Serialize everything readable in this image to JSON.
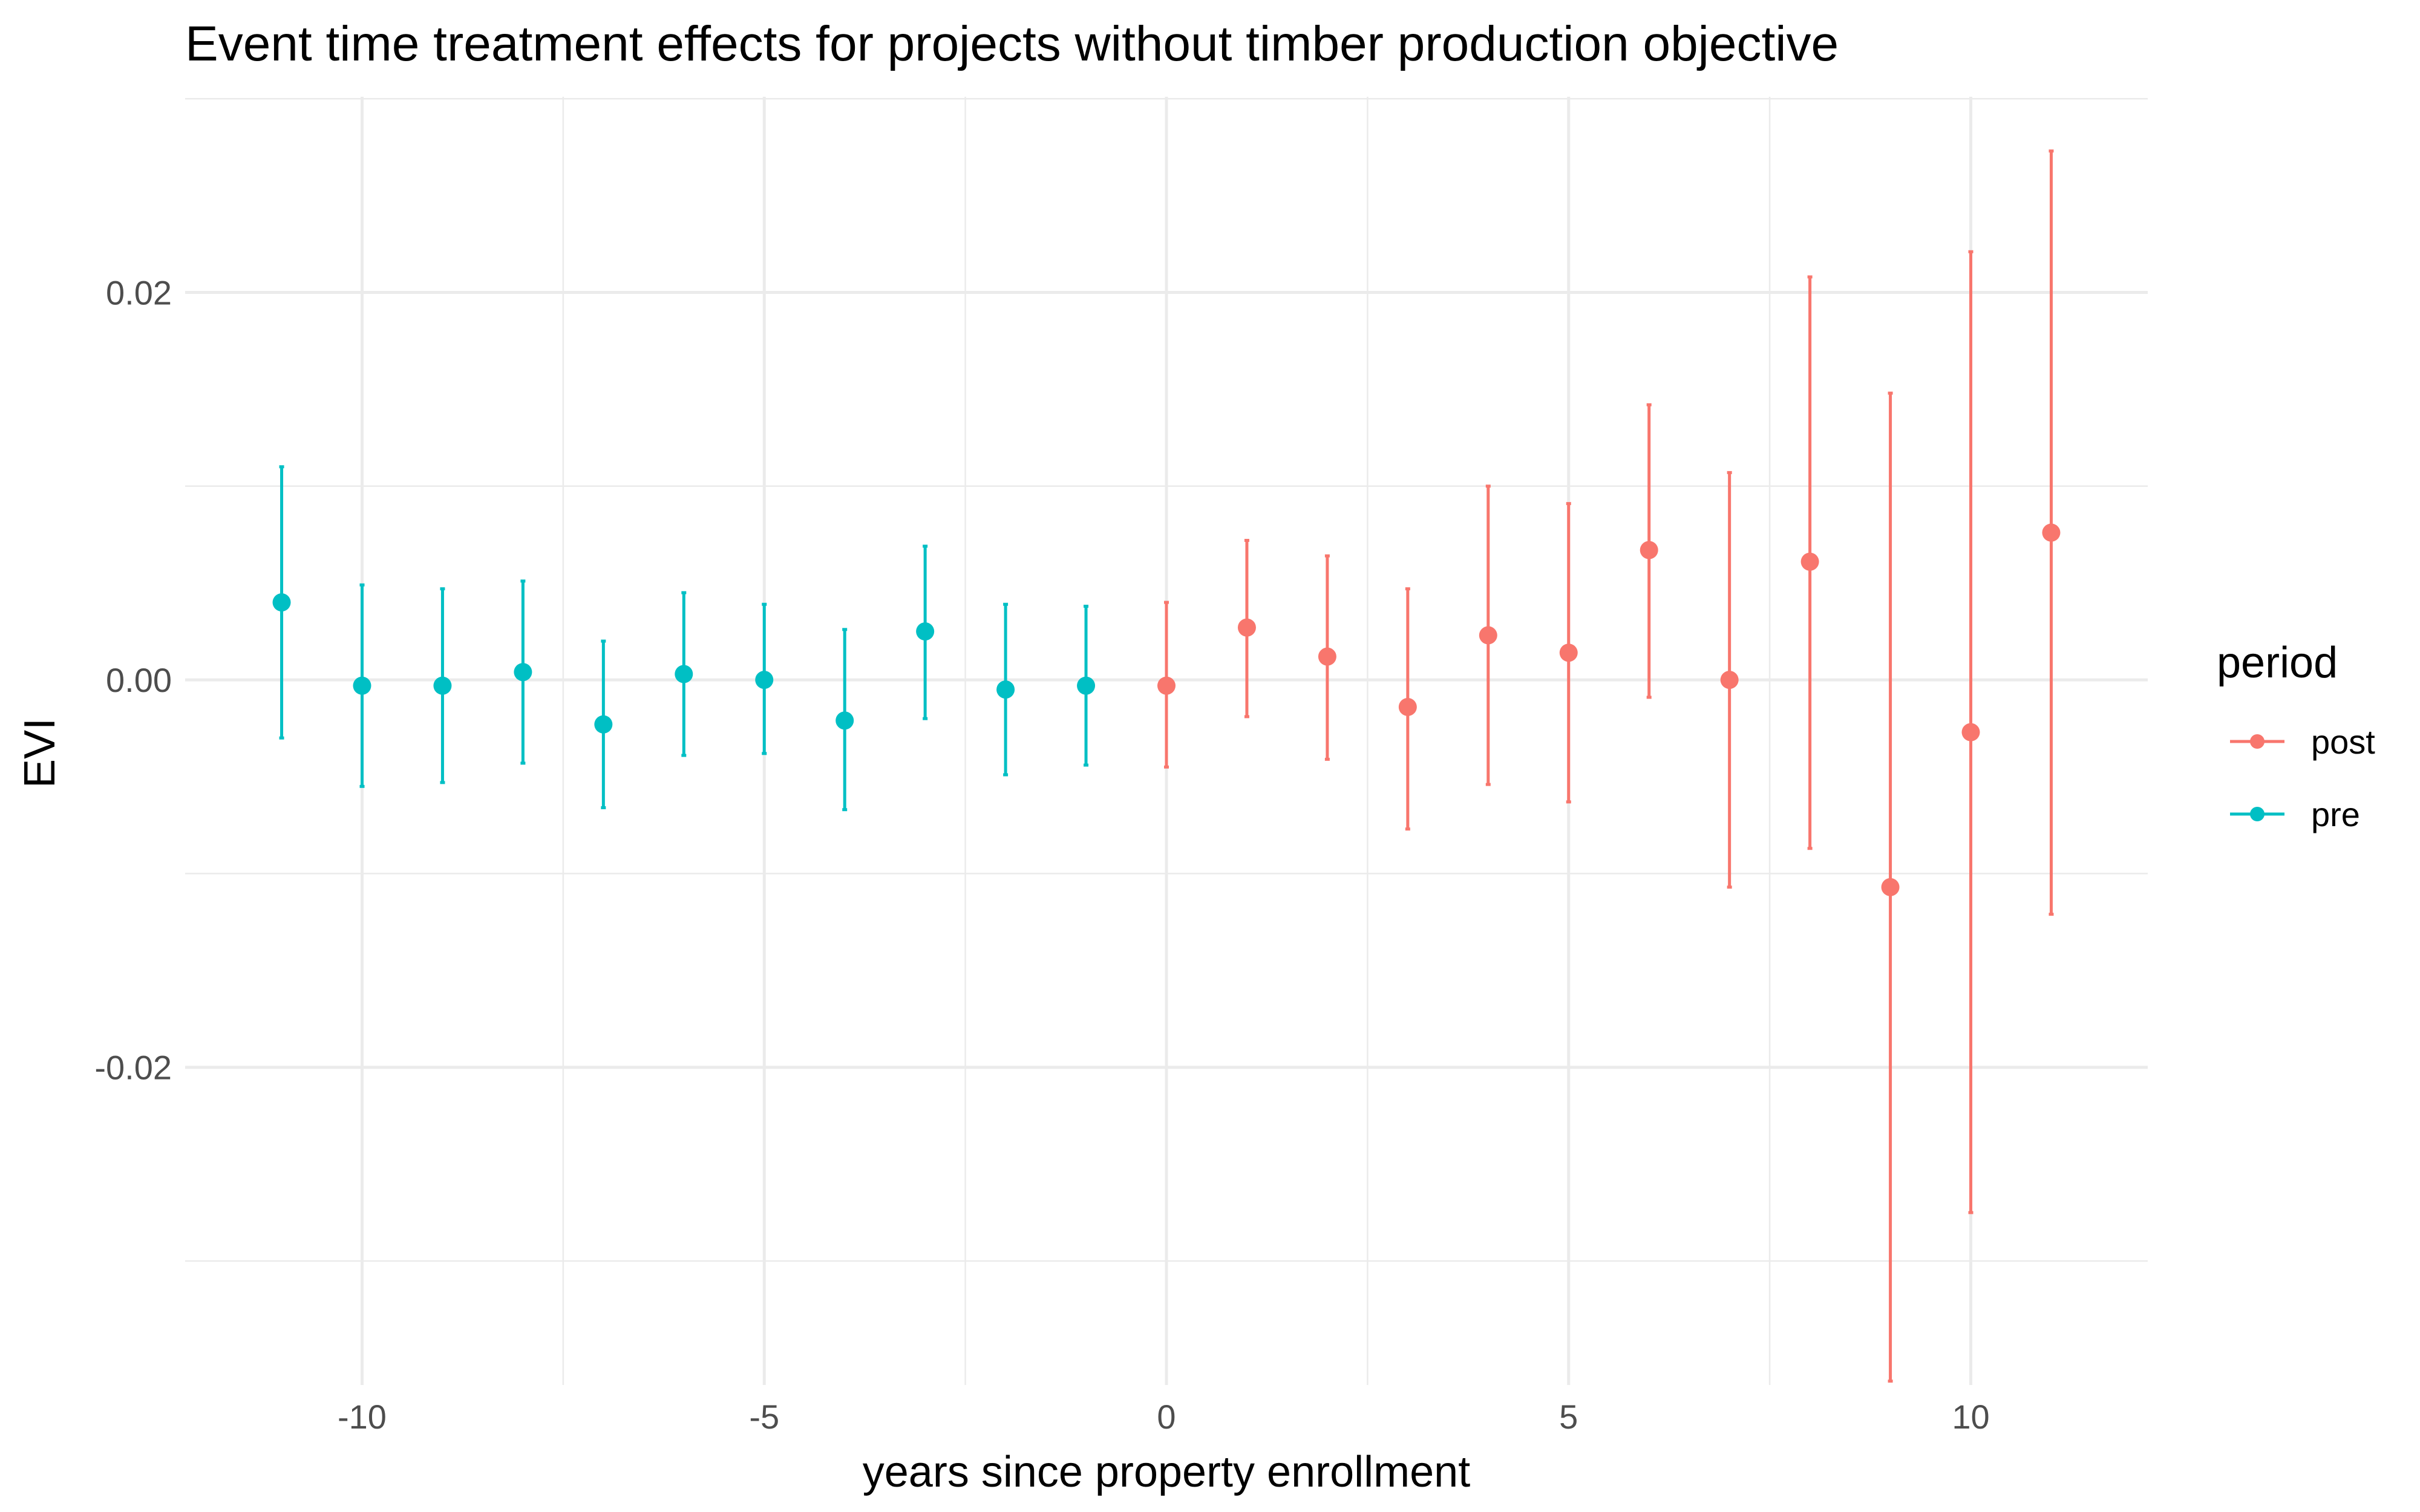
{
  "chart_data": {
    "type": "scatter",
    "title": "Event time treatment effects for projects without timber production objective",
    "xlabel": "years since property enrollment",
    "ylabel": "EVI",
    "xlim": [
      -12.2,
      12.2
    ],
    "ylim": [
      -0.0364,
      0.0301
    ],
    "x_ticks": [
      -10,
      -5,
      0,
      5,
      10
    ],
    "x_tick_labels": [
      "-10",
      "-5",
      "0",
      "5",
      "10"
    ],
    "y_ticks": [
      0.02,
      0.0,
      -0.02
    ],
    "y_tick_labels": [
      "0.02",
      "0.00",
      "-0.02"
    ],
    "grid": true,
    "legend": {
      "title": "period",
      "position": "right",
      "entries": [
        {
          "label": "post",
          "color": "#F8766D"
        },
        {
          "label": "pre",
          "color": "#00BFC4"
        }
      ]
    },
    "series": [
      {
        "name": "pre",
        "color": "#00BFC4",
        "points": [
          {
            "x": -11,
            "y": 0.004,
            "ymin": -0.003,
            "ymax": 0.011
          },
          {
            "x": -10,
            "y": -0.0003,
            "ymin": -0.0055,
            "ymax": 0.0049
          },
          {
            "x": -9,
            "y": -0.0003,
            "ymin": -0.0053,
            "ymax": 0.0047
          },
          {
            "x": -8,
            "y": 0.0004,
            "ymin": -0.0043,
            "ymax": 0.0051
          },
          {
            "x": -7,
            "y": -0.0023,
            "ymin": -0.0066,
            "ymax": 0.002
          },
          {
            "x": -6,
            "y": 0.0003,
            "ymin": -0.0039,
            "ymax": 0.0045
          },
          {
            "x": -5,
            "y": 0.0,
            "ymin": -0.0038,
            "ymax": 0.0039
          },
          {
            "x": -4,
            "y": -0.0021,
            "ymin": -0.0067,
            "ymax": 0.0026
          },
          {
            "x": -3,
            "y": 0.0025,
            "ymin": -0.002,
            "ymax": 0.0069
          },
          {
            "x": -2,
            "y": -0.0005,
            "ymin": -0.0049,
            "ymax": 0.0039
          },
          {
            "x": -1,
            "y": -0.0003,
            "ymin": -0.0044,
            "ymax": 0.0038
          }
        ]
      },
      {
        "name": "post",
        "color": "#F8766D",
        "points": [
          {
            "x": 0,
            "y": -0.0003,
            "ymin": -0.0045,
            "ymax": 0.004
          },
          {
            "x": 1,
            "y": 0.0027,
            "ymin": -0.0019,
            "ymax": 0.0072
          },
          {
            "x": 2,
            "y": 0.0012,
            "ymin": -0.0041,
            "ymax": 0.0064
          },
          {
            "x": 3,
            "y": -0.0014,
            "ymin": -0.0077,
            "ymax": 0.0047
          },
          {
            "x": 4,
            "y": 0.0023,
            "ymin": -0.0054,
            "ymax": 0.01
          },
          {
            "x": 5,
            "y": 0.0014,
            "ymin": -0.0063,
            "ymax": 0.0091
          },
          {
            "x": 6,
            "y": 0.0067,
            "ymin": -0.0009,
            "ymax": 0.0142
          },
          {
            "x": 7,
            "y": 0.0,
            "ymin": -0.0107,
            "ymax": 0.0107
          },
          {
            "x": 8,
            "y": 0.0061,
            "ymin": -0.0087,
            "ymax": 0.0208
          },
          {
            "x": 9,
            "y": -0.0107,
            "ymin": -0.0362,
            "ymax": 0.0148
          },
          {
            "x": 10,
            "y": -0.0027,
            "ymin": -0.0275,
            "ymax": 0.0221
          },
          {
            "x": 11,
            "y": 0.0076,
            "ymin": -0.0121,
            "ymax": 0.0273
          }
        ]
      }
    ]
  }
}
